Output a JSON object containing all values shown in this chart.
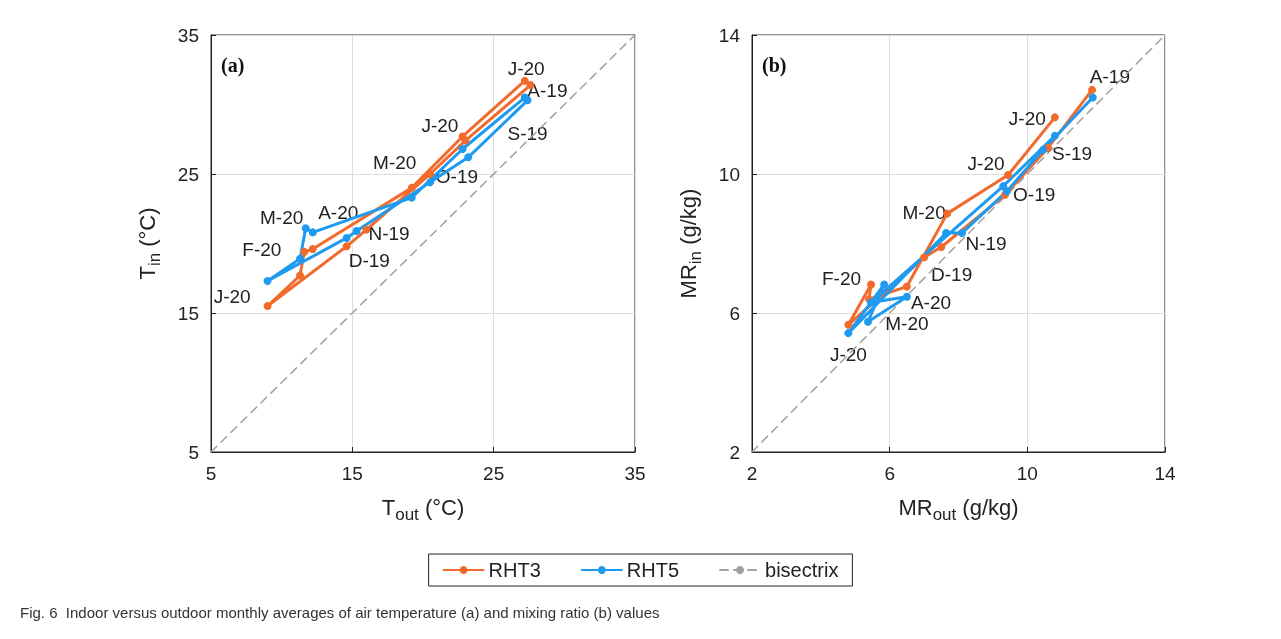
{
  "chart_data": [
    {
      "type": "line",
      "title": "(a)",
      "xlabel": "T$_{out}$ (°C)",
      "ylabel": "T$_{in}$ (°C)",
      "xlim": [
        5,
        35
      ],
      "xticks": [
        5,
        15,
        25,
        35
      ],
      "ylim": [
        5,
        35
      ],
      "yticks": [
        5,
        15,
        25,
        35
      ],
      "grid": true,
      "legend": "bottom",
      "marker": "circle",
      "series": [
        {
          "name": "RHT3",
          "color": "#f26b2c",
          "x": [
            27.6,
            23.0,
            20.5,
            16.0,
            14.6,
            9.0,
            11.3,
            11.6,
            12.2,
            19.2,
            22.8,
            27.2
          ],
          "values": [
            31.4,
            27.4,
            25.0,
            21.0,
            19.8,
            15.5,
            17.7,
            19.4,
            19.6,
            24.0,
            27.7,
            31.7
          ]
        },
        {
          "name": "RHT5",
          "color": "#1e9bf0",
          "x": [
            27.4,
            23.2,
            20.5,
            15.3,
            14.6,
            9.0,
            11.3,
            11.7,
            12.2,
            19.2,
            22.8,
            27.2
          ],
          "values": [
            30.3,
            26.2,
            24.4,
            20.9,
            20.4,
            17.3,
            18.9,
            21.1,
            20.8,
            23.3,
            26.8,
            30.5
          ]
        },
        {
          "name": "bisectrix",
          "color": "#a0a0a0",
          "marker": "none",
          "line_style": "dashed",
          "x": [
            5,
            35
          ],
          "values": [
            5,
            35
          ]
        }
      ],
      "annotations": [
        "J-20",
        "A-19",
        "J-20",
        "S-19",
        "M-20",
        "O-19",
        "M-20",
        "A-20",
        "F-20",
        "N-19",
        "D-19",
        "J-20",
        "Fig. 6  Indoor versus outdoor monthly averages of air temperature (a) and mixing ratio (b) values"
      ]
    },
    {
      "type": "line",
      "title": "(b)",
      "xlabel": "MR$_{out}$ (g/kg)",
      "ylabel": "MR$_{in}$ (g/kg)",
      "xlim": [
        2,
        14
      ],
      "xticks": [
        2,
        6,
        10,
        14
      ],
      "ylim": [
        2,
        14
      ],
      "yticks": [
        2,
        6,
        10,
        14
      ],
      "grid": true,
      "marker": "circle",
      "series": [
        {
          "color": "#f26b2c",
          "x": [
            11.88,
            10.6,
            9.35,
            7.5,
            7.0,
            4.8,
            5.46,
            5.4,
            6.5,
            7.67,
            9.44,
            10.8
          ],
          "values": [
            12.42,
            10.75,
            9.4,
            7.9,
            7.6,
            5.66,
            6.82,
            6.4,
            6.76,
            8.86,
            9.97,
            11.63
          ]
        },
        {
          "color": "#1e9bf0",
          "x": [
            11.9,
            10.46,
            9.4,
            8.1,
            7.64,
            4.8,
            5.84,
            5.37,
            6.5,
            5.46,
            9.3,
            10.8
          ],
          "values": [
            12.2,
            10.7,
            9.5,
            8.3,
            8.3,
            5.42,
            6.82,
            5.75,
            6.47,
            6.3,
            9.65,
            11.1
          ]
        },
        {
          "color": "#a0a0a0",
          "marker": "none",
          "line_style": "dashed",
          "x": [
            2,
            14
          ],
          "values": [
            2,
            14
          ]
        }
      ],
      "annotations": [
        "A-19",
        "J-20",
        "S-19",
        "J-20",
        "O-19",
        "M-20",
        "N-19",
        "D-19",
        "F-20",
        "A-20",
        "M-20",
        "J-20"
      ]
    }
  ]
}
